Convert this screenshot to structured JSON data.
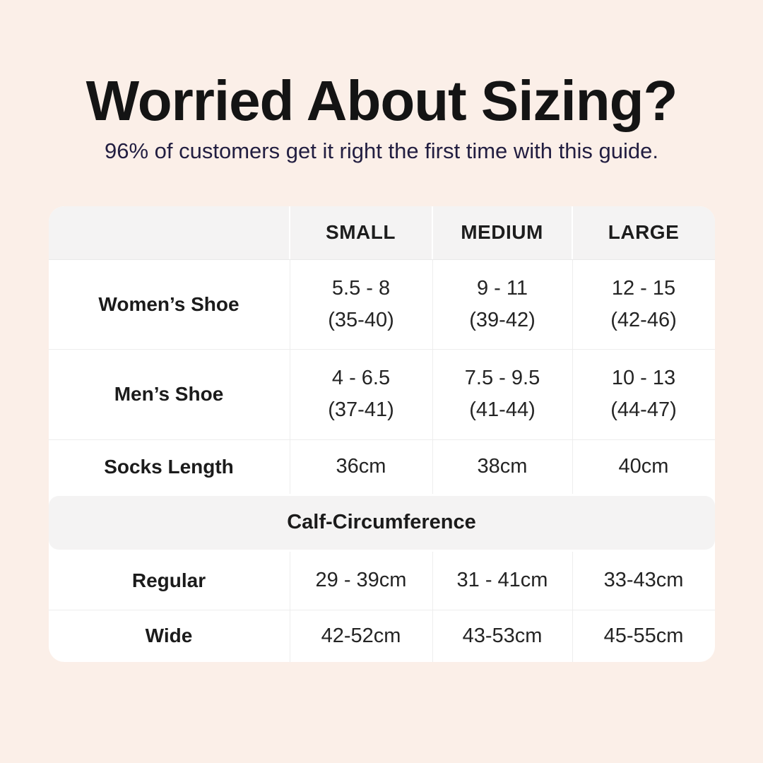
{
  "colors": {
    "page_background": "#fbefe8",
    "table_background": "#ffffff",
    "band_background": "#f4f3f3",
    "border": "#ededed",
    "title_text": "#141414",
    "subtitle_text": "#221e41",
    "table_text": "#1b1b1b"
  },
  "header": {
    "title": "Worried About Sizing?",
    "subtitle": "96% of customers get it right the first time with this guide."
  },
  "table": {
    "column_headers": [
      "SMALL",
      "MEDIUM",
      "LARGE"
    ],
    "shoe_rows": [
      {
        "label": "Women’s Shoe",
        "cells": [
          {
            "line1": "5.5 - 8",
            "line2": "(35-40)"
          },
          {
            "line1": "9 - 11",
            "line2": "(39-42)"
          },
          {
            "line1": "12 - 15",
            "line2": "(42-46)"
          }
        ]
      },
      {
        "label": "Men’s Shoe",
        "cells": [
          {
            "line1": "4 - 6.5",
            "line2": "(37-41)"
          },
          {
            "line1": "7.5 - 9.5",
            "line2": "(41-44)"
          },
          {
            "line1": "10 - 13",
            "line2": "(44-47)"
          }
        ]
      }
    ],
    "socks_row": {
      "label": "Socks Length",
      "values": [
        "36cm",
        "38cm",
        "40cm"
      ]
    },
    "section_label": "Calf-Circumference",
    "calf_rows": [
      {
        "label": "Regular",
        "values": [
          "29 - 39cm",
          "31 - 41cm",
          "33-43cm"
        ]
      },
      {
        "label": "Wide",
        "values": [
          "42-52cm",
          "43-53cm",
          "45-55cm"
        ]
      }
    ]
  },
  "chart_data": {
    "type": "table",
    "title": "Worried About Sizing?",
    "subtitle": "96% of customers get it right the first time with this guide.",
    "columns": [
      "",
      "SMALL",
      "MEDIUM",
      "LARGE"
    ],
    "rows": [
      [
        "Women’s Shoe",
        "5.5 - 8 (35-40)",
        "9 - 11 (39-42)",
        "12 - 15 (42-46)"
      ],
      [
        "Men’s Shoe",
        "4 - 6.5 (37-41)",
        "7.5 - 9.5 (41-44)",
        "10 - 13 (44-47)"
      ],
      [
        "Socks Length",
        "36cm",
        "38cm",
        "40cm"
      ],
      [
        "Calf-Circumference",
        "",
        "",
        ""
      ],
      [
        "Regular",
        "29 - 39cm",
        "31 - 41cm",
        "33-43cm"
      ],
      [
        "Wide",
        "42-52cm",
        "43-53cm",
        "45-55cm"
      ]
    ]
  }
}
